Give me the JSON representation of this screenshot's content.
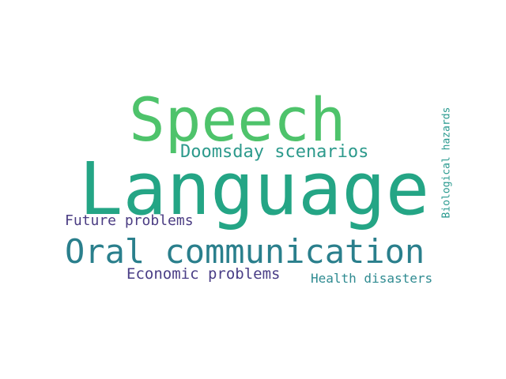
{
  "words": {
    "speech": {
      "text": "Speech",
      "color": "#4ec36b"
    },
    "doomsday": {
      "text": "Doomsday scenarios",
      "color": "#2d9a8c"
    },
    "language": {
      "text": "Language",
      "color": "#24a585"
    },
    "biological": {
      "text": "Biological hazards",
      "color": "#2a9a8f"
    },
    "future": {
      "text": "Future problems",
      "color": "#4b3d83"
    },
    "oral": {
      "text": "Oral communication",
      "color": "#2a7f8c"
    },
    "economic": {
      "text": "Economic problems",
      "color": "#4a3e86"
    },
    "health": {
      "text": "Health disasters",
      "color": "#2f8b91"
    }
  }
}
